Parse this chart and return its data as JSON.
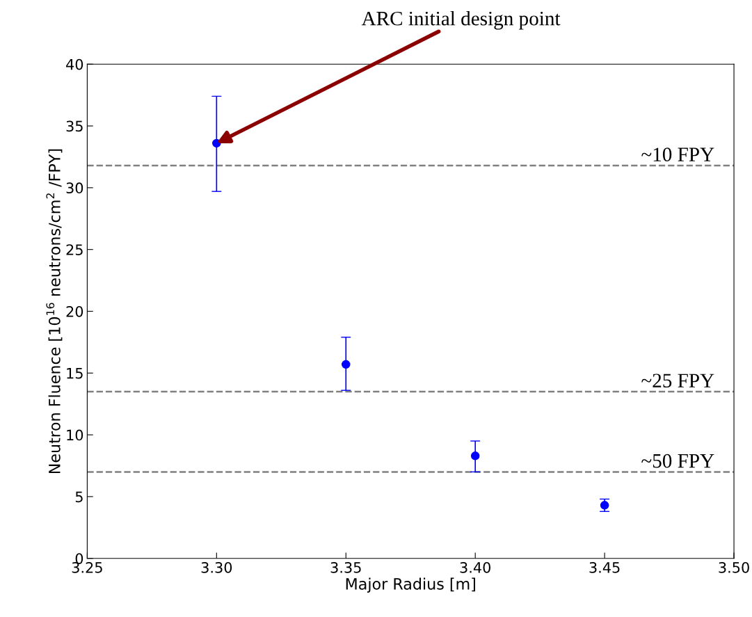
{
  "chart_data": {
    "type": "scatter",
    "xlabel": "Major Radius [m]",
    "ylabel": "Neutron Fluence [10$^{16}$ neutrons/cm$^{2}$ /FPY]",
    "x": [
      3.3,
      3.35,
      3.4,
      3.45
    ],
    "series": [
      {
        "color": "#0000ff",
        "values": [
          33.6,
          15.7,
          8.3,
          4.3
        ],
        "errors": [
          [
            29.7,
            37.4
          ],
          [
            13.6,
            17.9
          ],
          [
            7.0,
            9.5
          ],
          [
            3.8,
            4.8
          ]
        ]
      }
    ],
    "marker": "circle",
    "xlim": [
      3.25,
      3.5
    ],
    "xticks": [
      {
        "value": 3.25,
        "label": "3.25"
      },
      {
        "value": 3.3,
        "label": "3.30"
      },
      {
        "value": 3.35,
        "label": "3.35"
      },
      {
        "value": 3.4,
        "label": "3.40"
      },
      {
        "value": 3.45,
        "label": "3.45"
      },
      {
        "value": 3.5,
        "label": "3.50"
      }
    ],
    "ylim": [
      0,
      40
    ],
    "yticks": [
      0,
      5,
      10,
      15,
      20,
      25,
      30,
      35,
      40
    ],
    "ref_lines": [
      {
        "axis": "y",
        "value": 31.8,
        "label": "~10 FPY",
        "color": "#808080",
        "line_style": "dashed"
      },
      {
        "axis": "y",
        "value": 13.5,
        "label": "~25 FPY",
        "color": "#808080",
        "line_style": "dashed"
      },
      {
        "axis": "y",
        "value": 7.0,
        "label": "~50 FPY",
        "color": "#808080",
        "line_style": "dashed"
      }
    ],
    "annotations": [
      {
        "text": "ARC initial design point",
        "x": 3.3,
        "y": 33.6
      }
    ],
    "grid": false,
    "legend": false
  }
}
